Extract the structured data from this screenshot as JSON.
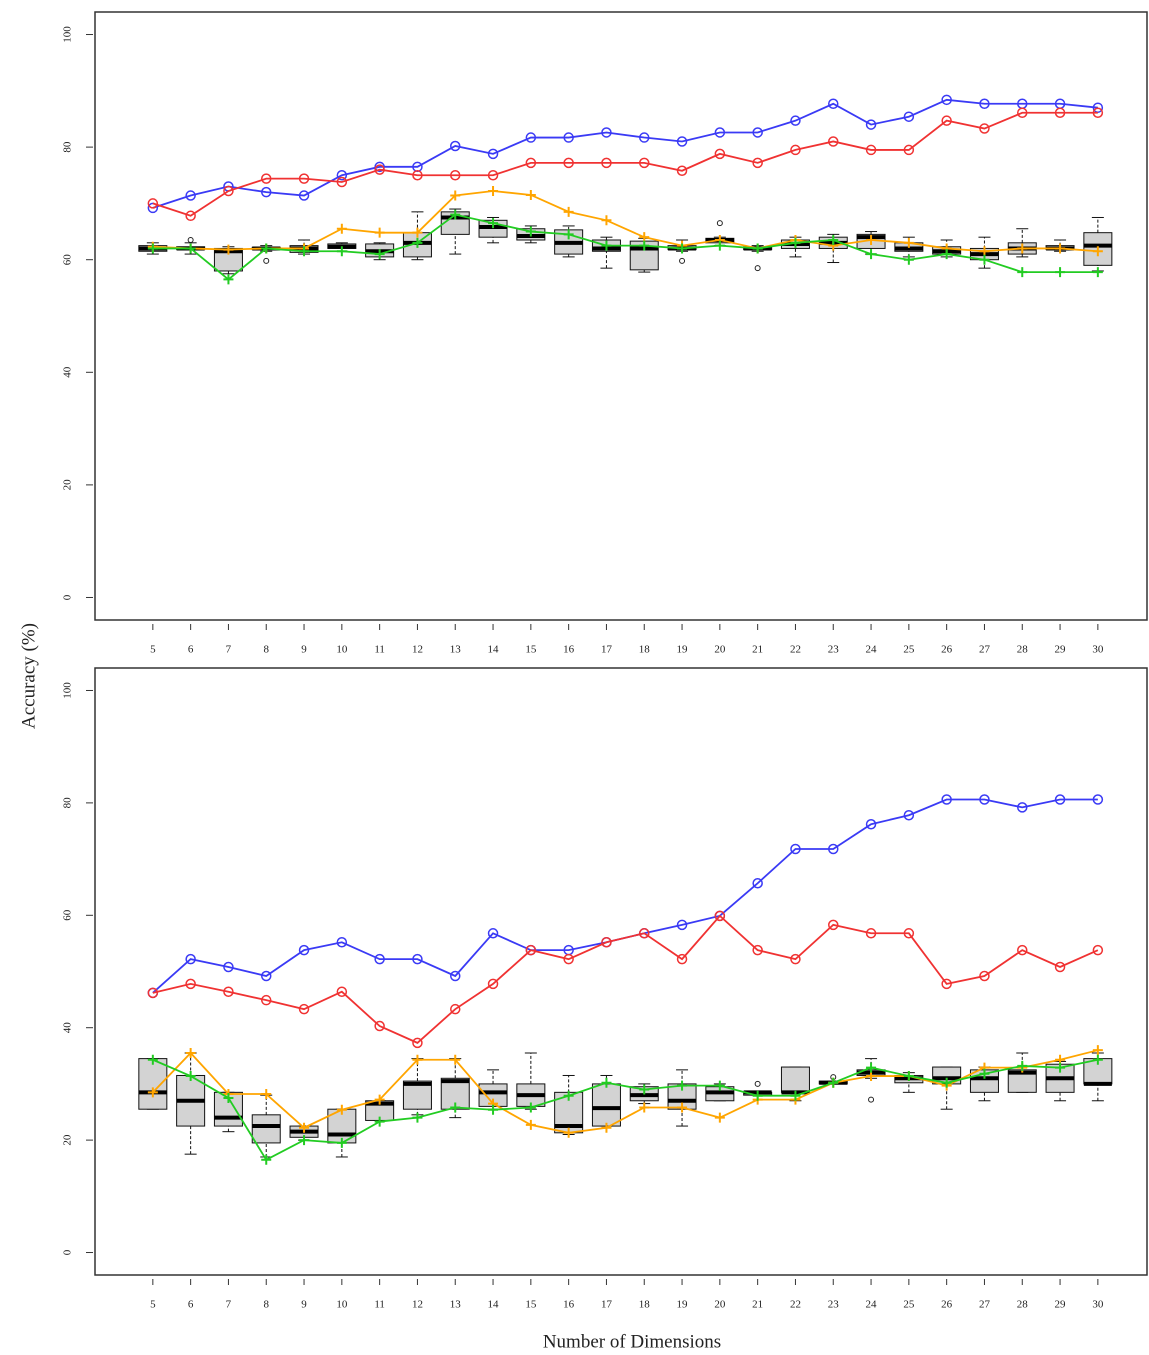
{
  "chart_data": [
    {
      "type": "line",
      "ylabel": "Accuracy (%)",
      "x": [
        5,
        6,
        7,
        8,
        9,
        10,
        11,
        12,
        13,
        14,
        15,
        16,
        17,
        18,
        19,
        20,
        21,
        22,
        23,
        24,
        25,
        26,
        27,
        28,
        29,
        30
      ],
      "xlim": [
        3.47,
        31.3
      ],
      "xticks": [
        5,
        6,
        7,
        8,
        9,
        10,
        11,
        12,
        13,
        14,
        15,
        16,
        17,
        18,
        19,
        20,
        21,
        22,
        23,
        24,
        25,
        26,
        27,
        28,
        29,
        30
      ],
      "ylim": [
        -4,
        104
      ],
      "yticks": [
        0,
        20,
        40,
        60,
        80,
        100
      ],
      "series": [
        {
          "color": "#3a3af5",
          "marker": "circle",
          "values": [
            69.2,
            71.4,
            73,
            72,
            71.4,
            75,
            76.5,
            76.5,
            80.2,
            78.8,
            81.7,
            81.7,
            82.6,
            81.7,
            81,
            82.6,
            82.6,
            84.7,
            87.7,
            84,
            85.4,
            88.4,
            87.7,
            87.7,
            87.7,
            87
          ]
        },
        {
          "color": "#f03232",
          "marker": "circle",
          "values": [
            70,
            67.8,
            72.2,
            74.4,
            74.4,
            73.8,
            76,
            75,
            75,
            75,
            77.2,
            77.2,
            77.2,
            77.2,
            75.8,
            78.8,
            77.2,
            79.5,
            81,
            79.5,
            79.5,
            84.7,
            83.3,
            86.1,
            86.1,
            86.1
          ]
        },
        {
          "color": "#ffa500",
          "marker": "plus",
          "values": [
            62.3,
            62,
            61.8,
            62,
            62,
            65.5,
            64.8,
            64.8,
            71.4,
            72.2,
            71.5,
            68.5,
            67,
            64,
            62.5,
            63.5,
            62,
            63.5,
            62.5,
            63.5,
            63,
            62,
            61.5,
            62,
            62,
            61.5
          ]
        },
        {
          "color": "#22cc22",
          "marker": "plus",
          "values": [
            62,
            62,
            56.5,
            62,
            61.5,
            61.5,
            61,
            63,
            68,
            66.5,
            65,
            64.5,
            62.5,
            62.5,
            62,
            62.5,
            62,
            63,
            63.5,
            61,
            60,
            61,
            60,
            57.8,
            57.8,
            57.8
          ]
        }
      ],
      "boxes": {
        "min": [
          61,
          61,
          57.5,
          61.5,
          61,
          61.5,
          60,
          60,
          61,
          63,
          63,
          60.5,
          58.5,
          57.8,
          61.5,
          62.5,
          61.5,
          60.5,
          59.5,
          61,
          60.5,
          60.5,
          58.5,
          60.5,
          61.5,
          58
        ],
        "q1": [
          61.5,
          61.8,
          58,
          61.8,
          61.3,
          62,
          60.5,
          60.5,
          64.5,
          64,
          63.5,
          61,
          61.5,
          58.2,
          61.8,
          63,
          61.8,
          62,
          62,
          62,
          61.5,
          61,
          60,
          61,
          61.8,
          59
        ],
        "median": [
          62,
          62,
          61.5,
          62,
          62,
          62.3,
          61.5,
          63,
          67.5,
          65.8,
          64.2,
          63,
          62,
          62,
          62,
          63.5,
          62,
          62.8,
          63,
          64,
          62,
          61.5,
          61,
          62,
          62,
          62.5
        ],
        "q3": [
          62.5,
          62.3,
          62,
          62.2,
          62.5,
          62.8,
          62.8,
          64.8,
          68.5,
          67,
          65.5,
          65.3,
          63.5,
          63.3,
          62.5,
          63.8,
          62.3,
          63.5,
          64,
          64.5,
          63,
          62.3,
          62,
          63,
          62.5,
          64.8
        ],
        "max": [
          63,
          63,
          62.3,
          62.5,
          63.5,
          63,
          63,
          68.5,
          69,
          67.5,
          66,
          66,
          64,
          63.8,
          63.5,
          64,
          62.5,
          64,
          64.5,
          65,
          64,
          63.5,
          64,
          65.5,
          63.5,
          67.5
        ],
        "outliers": [
          [],
          [
            63.5
          ],
          [],
          [
            59.8
          ],
          [],
          [],
          [],
          [],
          [],
          [],
          [],
          [],
          [],
          [],
          [
            59.8
          ],
          [
            66.5
          ],
          [
            58.5
          ],
          [],
          [],
          [],
          [],
          [],
          [],
          [],
          [],
          []
        ]
      }
    },
    {
      "type": "line",
      "xlabel": "Number of Dimensions",
      "x": [
        5,
        6,
        7,
        8,
        9,
        10,
        11,
        12,
        13,
        14,
        15,
        16,
        17,
        18,
        19,
        20,
        21,
        22,
        23,
        24,
        25,
        26,
        27,
        28,
        29,
        30
      ],
      "xlim": [
        3.47,
        31.3
      ],
      "xticks": [
        5,
        6,
        7,
        8,
        9,
        10,
        11,
        12,
        13,
        14,
        15,
        16,
        17,
        18,
        19,
        20,
        21,
        22,
        23,
        24,
        25,
        26,
        27,
        28,
        29,
        30
      ],
      "ylim": [
        -4,
        104
      ],
      "yticks": [
        0,
        20,
        40,
        60,
        80,
        100
      ],
      "series": [
        {
          "color": "#3a3af5",
          "marker": "circle",
          "values": [
            46.2,
            52.2,
            50.8,
            49.2,
            53.8,
            55.2,
            52.2,
            52.2,
            49.2,
            56.8,
            53.8,
            53.8,
            55.2,
            56.8,
            58.3,
            59.9,
            65.7,
            71.8,
            71.8,
            76.2,
            77.8,
            80.6,
            80.6,
            79.2,
            80.6,
            80.6
          ]
        },
        {
          "color": "#f03232",
          "marker": "circle",
          "values": [
            46.2,
            47.8,
            46.4,
            44.9,
            43.3,
            46.4,
            40.3,
            37.3,
            43.3,
            47.8,
            53.8,
            52.2,
            55.2,
            56.8,
            52.2,
            59.9,
            53.8,
            52.2,
            58.3,
            56.8,
            56.8,
            47.8,
            49.2,
            53.8,
            50.8,
            53.8
          ]
        },
        {
          "color": "#ffa500",
          "marker": "plus",
          "values": [
            28.5,
            35.5,
            28.2,
            28.2,
            22.2,
            25.4,
            27.2,
            34.3,
            34.3,
            26.5,
            22.7,
            21.3,
            22.2,
            25.8,
            25.8,
            24,
            27.2,
            27.2,
            30.2,
            31.4,
            31.4,
            29.7,
            32.9,
            32.9,
            34.3,
            36
          ]
        },
        {
          "color": "#22cc22",
          "marker": "plus",
          "values": [
            34.3,
            31.4,
            27.5,
            16.5,
            20,
            19.5,
            23.3,
            24,
            25.8,
            25.4,
            25.8,
            27.9,
            30.2,
            29,
            29.7,
            29.7,
            27.9,
            27.9,
            30.2,
            32.9,
            31.4,
            30.2,
            31.8,
            33.2,
            32.9,
            34.3
          ]
        }
      ],
      "boxes": {
        "min": [
          25.5,
          17.5,
          21.5,
          17,
          20,
          17,
          23.5,
          24.5,
          24,
          25.5,
          25.5,
          21,
          22.5,
          26.5,
          22.5,
          27,
          28,
          27,
          30,
          31,
          28.5,
          25.5,
          27,
          28.5,
          27,
          27
        ],
        "q1": [
          25.5,
          22.5,
          22.5,
          19.5,
          20.5,
          19.5,
          23.5,
          25.5,
          25.5,
          26,
          26,
          21.3,
          22.5,
          27,
          25.5,
          27,
          28,
          28.5,
          30,
          31.5,
          30.2,
          30,
          28.5,
          28.5,
          28.5,
          30
        ],
        "median": [
          28.5,
          27,
          24,
          22.5,
          21.5,
          21,
          26.5,
          30,
          30.5,
          28.5,
          28,
          22.5,
          25.7,
          28,
          27,
          28.5,
          28.5,
          28.5,
          30.2,
          32,
          31,
          31,
          31,
          32,
          31,
          30
        ],
        "q3": [
          34.5,
          31.5,
          28.5,
          24.5,
          22.5,
          25.5,
          27,
          30.5,
          31,
          30,
          30,
          28.5,
          30,
          29.5,
          30,
          29.5,
          28.5,
          33,
          30.5,
          32.5,
          31.5,
          33,
          32.5,
          32.5,
          33.5,
          34.5
        ],
        "max": [
          34.5,
          35.5,
          28.5,
          28,
          22.5,
          25.5,
          27,
          34.5,
          34.5,
          32.5,
          35.5,
          31.5,
          31.5,
          30,
          32.5,
          30,
          28.5,
          33,
          30.5,
          34.5,
          32,
          33,
          33,
          35.5,
          34,
          35.5
        ],
        "outliers": [
          [],
          [],
          [],
          [],
          [],
          [],
          [],
          [],
          [],
          [],
          [],
          [],
          [],
          [],
          [],
          [],
          [
            30
          ],
          [],
          [
            31.2
          ],
          [
            27.2
          ],
          [],
          [],
          [],
          [],
          [],
          []
        ]
      }
    }
  ]
}
